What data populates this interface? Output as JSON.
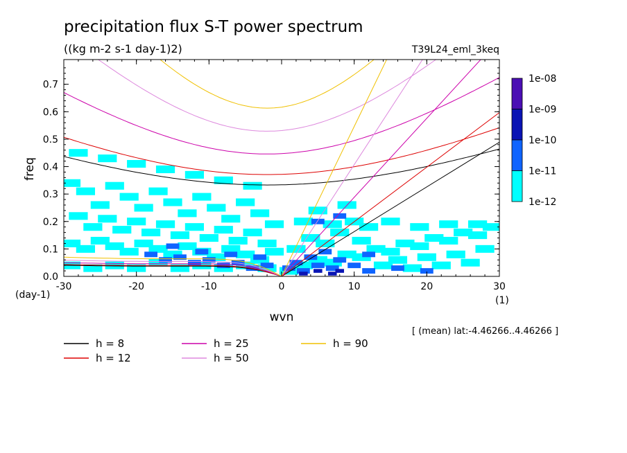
{
  "chart_data": {
    "type": "heatmap",
    "title": "precipitation flux S-T power spectrum",
    "subtitle": "((kg m-2 s-1 day-1)2)",
    "run_label": "T39L24_eml_3keq",
    "xlabel": "wvn",
    "ylabel": "freq",
    "x_unit": "(1)",
    "y_unit": "(day-1)",
    "xlim": [
      -30,
      30
    ],
    "ylim": [
      0,
      0.79
    ],
    "x_ticks": [
      -30,
      -20,
      -10,
      0,
      10,
      20,
      30
    ],
    "x_tick_labels": [
      "-30",
      "-20",
      "-10",
      "0",
      "10",
      "20",
      "30"
    ],
    "y_ticks": [
      0.0,
      0.1,
      0.2,
      0.3,
      0.4,
      0.5,
      0.6,
      0.7
    ],
    "y_tick_labels": [
      "0.0",
      "0.1",
      "0.2",
      "0.3",
      "0.4",
      "0.5",
      "0.6",
      "0.7"
    ],
    "colorbar": {
      "labels": [
        "1e-08",
        "1e-09",
        "1e-10",
        "1e-11",
        "1e-12"
      ],
      "colors": [
        "#4b0fb4",
        "#0a14b4",
        "#0f64ff",
        "#00ffff"
      ]
    },
    "annotation": "[ (mean) lat:-4.46266..4.46266 ]",
    "dispersion_curves": [
      {
        "label": "h =  8",
        "color": "#000000",
        "gw_min_freq": 0.333,
        "kelvin_slope": 0.0163
      },
      {
        "label": "h = 12",
        "color": "#dd0000",
        "gw_min_freq": 0.371,
        "kelvin_slope": 0.0199
      },
      {
        "label": "h = 25",
        "color": "#cc00aa",
        "gw_min_freq": 0.446,
        "kelvin_slope": 0.0288
      },
      {
        "label": "h = 50",
        "color": "#dd88dd",
        "gw_min_freq": 0.529,
        "kelvin_slope": 0.0407
      },
      {
        "label": "h = 90",
        "color": "#f0c000",
        "gw_min_freq": 0.613,
        "kelvin_slope": 0.0546
      }
    ],
    "spectrum_cells": [
      [
        -29,
        0.34,
        4
      ],
      [
        -27,
        0.31,
        4
      ],
      [
        -25,
        0.26,
        4
      ],
      [
        -23,
        0.33,
        4
      ],
      [
        -21,
        0.29,
        4
      ],
      [
        -19,
        0.25,
        4
      ],
      [
        -17,
        0.31,
        4
      ],
      [
        -15,
        0.27,
        4
      ],
      [
        -13,
        0.23,
        4
      ],
      [
        -11,
        0.29,
        4
      ],
      [
        -9,
        0.25,
        4
      ],
      [
        -7,
        0.21,
        4
      ],
      [
        -5,
        0.27,
        4
      ],
      [
        -3,
        0.23,
        4
      ],
      [
        -1,
        0.19,
        4
      ],
      [
        -28,
        0.22,
        4
      ],
      [
        -26,
        0.18,
        4
      ],
      [
        -24,
        0.21,
        4
      ],
      [
        -22,
        0.17,
        4
      ],
      [
        -20,
        0.2,
        4
      ],
      [
        -18,
        0.16,
        4
      ],
      [
        -16,
        0.19,
        4
      ],
      [
        -14,
        0.15,
        4
      ],
      [
        -12,
        0.18,
        4
      ],
      [
        -10,
        0.14,
        4
      ],
      [
        -8,
        0.17,
        4
      ],
      [
        -6,
        0.13,
        4
      ],
      [
        -4,
        0.16,
        4
      ],
      [
        -2,
        0.12,
        4
      ],
      [
        -29,
        0.12,
        4
      ],
      [
        -27,
        0.1,
        4
      ],
      [
        -25,
        0.13,
        4
      ],
      [
        -23,
        0.11,
        4
      ],
      [
        -21,
        0.09,
        4
      ],
      [
        -19,
        0.12,
        4
      ],
      [
        -17,
        0.1,
        4
      ],
      [
        -15,
        0.08,
        4
      ],
      [
        -13,
        0.11,
        4
      ],
      [
        -11,
        0.09,
        4
      ],
      [
        -9,
        0.07,
        4
      ],
      [
        -7,
        0.1,
        4
      ],
      [
        -5,
        0.08,
        4
      ],
      [
        -3,
        0.06,
        4
      ],
      [
        -1,
        0.09,
        4
      ],
      [
        -29,
        0.04,
        4
      ],
      [
        -26,
        0.03,
        4
      ],
      [
        -23,
        0.04,
        4
      ],
      [
        -20,
        0.03,
        4
      ],
      [
        -17,
        0.05,
        4
      ],
      [
        -14,
        0.03,
        4
      ],
      [
        -11,
        0.04,
        4
      ],
      [
        -8,
        0.03,
        4
      ],
      [
        -5,
        0.04,
        4
      ],
      [
        -2,
        0.03,
        4
      ],
      [
        -28,
        0.45,
        4
      ],
      [
        -24,
        0.43,
        4
      ],
      [
        -20,
        0.41,
        4
      ],
      [
        -16,
        0.39,
        4
      ],
      [
        -12,
        0.37,
        4
      ],
      [
        -8,
        0.35,
        4
      ],
      [
        -4,
        0.33,
        4
      ],
      [
        -18,
        0.08,
        3
      ],
      [
        -16,
        0.06,
        3
      ],
      [
        -14,
        0.07,
        3
      ],
      [
        -12,
        0.05,
        3
      ],
      [
        -10,
        0.06,
        3
      ],
      [
        -8,
        0.04,
        3
      ],
      [
        -6,
        0.05,
        3
      ],
      [
        -4,
        0.03,
        3
      ],
      [
        -2,
        0.04,
        3
      ],
      [
        -15,
        0.11,
        3
      ],
      [
        -11,
        0.09,
        3
      ],
      [
        -7,
        0.08,
        3
      ],
      [
        -3,
        0.07,
        3
      ],
      [
        1,
        0.02,
        4
      ],
      [
        3,
        0.04,
        4
      ],
      [
        5,
        0.06,
        4
      ],
      [
        7,
        0.05,
        4
      ],
      [
        9,
        0.08,
        4
      ],
      [
        11,
        0.07,
        4
      ],
      [
        13,
        0.1,
        4
      ],
      [
        15,
        0.09,
        4
      ],
      [
        17,
        0.12,
        4
      ],
      [
        19,
        0.11,
        4
      ],
      [
        21,
        0.14,
        4
      ],
      [
        23,
        0.13,
        4
      ],
      [
        25,
        0.16,
        4
      ],
      [
        27,
        0.15,
        4
      ],
      [
        29,
        0.18,
        4
      ],
      [
        2,
        0.1,
        4
      ],
      [
        4,
        0.14,
        4
      ],
      [
        6,
        0.12,
        4
      ],
      [
        8,
        0.16,
        4
      ],
      [
        10,
        0.2,
        4
      ],
      [
        12,
        0.18,
        4
      ],
      [
        14,
        0.04,
        4
      ],
      [
        16,
        0.06,
        4
      ],
      [
        18,
        0.03,
        4
      ],
      [
        20,
        0.07,
        4
      ],
      [
        22,
        0.04,
        4
      ],
      [
        24,
        0.08,
        4
      ],
      [
        26,
        0.05,
        4
      ],
      [
        28,
        0.1,
        4
      ],
      [
        3,
        0.2,
        4
      ],
      [
        5,
        0.24,
        4
      ],
      [
        7,
        0.19,
        4
      ],
      [
        9,
        0.26,
        4
      ],
      [
        11,
        0.13,
        4
      ],
      [
        15,
        0.2,
        4
      ],
      [
        19,
        0.18,
        4
      ],
      [
        23,
        0.19,
        4
      ],
      [
        27,
        0.19,
        4
      ],
      [
        1,
        0.03,
        3
      ],
      [
        2,
        0.05,
        3
      ],
      [
        3,
        0.02,
        3
      ],
      [
        4,
        0.07,
        3
      ],
      [
        5,
        0.04,
        3
      ],
      [
        6,
        0.09,
        3
      ],
      [
        7,
        0.03,
        3
      ],
      [
        8,
        0.06,
        3
      ],
      [
        10,
        0.04,
        3
      ],
      [
        12,
        0.02,
        3
      ],
      [
        16,
        0.03,
        3
      ],
      [
        20,
        0.02,
        3
      ],
      [
        5,
        0.2,
        3
      ],
      [
        8,
        0.22,
        3
      ],
      [
        12,
        0.08,
        3
      ],
      [
        3,
        0.01,
        2
      ],
      [
        5,
        0.02,
        2
      ],
      [
        7,
        0.01,
        2
      ],
      [
        8,
        0.02,
        2
      ]
    ]
  }
}
